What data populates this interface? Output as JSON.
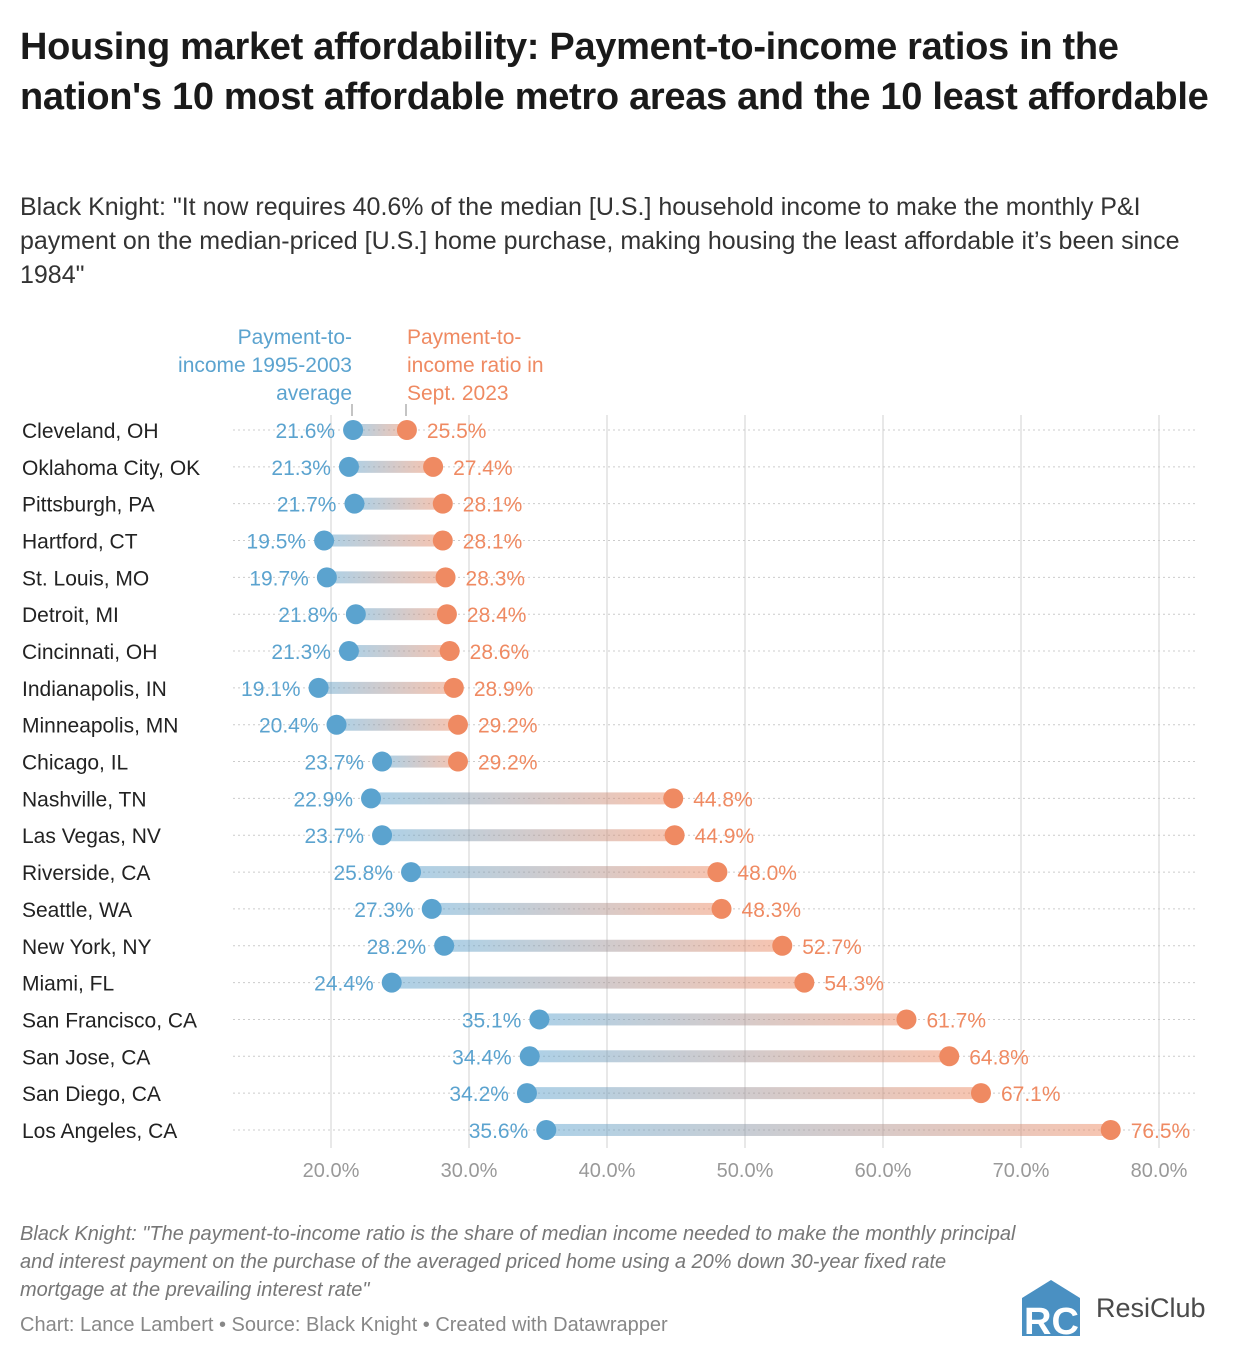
{
  "title": "Housing market affordability: Payment-to-income ratios in the nation's 10 most affordable metro areas and the 10 least affordable",
  "subtitle": "Black Knight: \"It now requires 40.6% of the median [U.S.] household income to make the monthly P&I payment on the median-priced [U.S.] home purchase, making housing the least affordable it’s been since 1984\"",
  "notes": "Black Knight: \"The payment-to-income ratio is the share of median income needed to make the monthly principal and interest payment on the purchase of the averaged priced home using a 20% down 30-year fixed rate mortgage at the prevailing interest rate\"",
  "byline": "Chart: Lance Lambert • Source: Black Knight • Created with Datawrapper",
  "logo": {
    "text": "ResiClub",
    "mark": "RC"
  },
  "colors": {
    "avg": "#5ba3cf",
    "sept2023": "#ef8a62"
  },
  "chart_data": {
    "type": "dot-range",
    "xlim": [
      15,
      80
    ],
    "xticks": [
      "20.0%",
      "30.0%",
      "40.0%",
      "50.0%",
      "60.0%",
      "70.0%",
      "80.0%"
    ],
    "xtick_values": [
      20,
      30,
      40,
      50,
      60,
      70,
      80
    ],
    "grid": true,
    "categories": [
      "Cleveland, OH",
      "Oklahoma City, OK",
      "Pittsburgh, PA",
      "Hartford, CT",
      "St. Louis, MO",
      "Detroit, MI",
      "Cincinnati, OH",
      "Indianapolis, IN",
      "Minneapolis, MN",
      "Chicago, IL",
      "Nashville, TN",
      "Las Vegas, NV",
      "Riverside, CA",
      "Seattle, WA",
      "New York, NY",
      "Miami, FL",
      "San Francisco, CA",
      "San Jose, CA",
      "San Diego, CA",
      "Los Angeles, CA"
    ],
    "series": [
      {
        "name": "Payment-to-income 1995-2003 average",
        "values": [
          21.6,
          21.3,
          21.7,
          19.5,
          19.7,
          21.8,
          21.3,
          19.1,
          20.4,
          23.7,
          22.9,
          23.7,
          25.8,
          27.3,
          28.2,
          24.4,
          35.1,
          34.4,
          34.2,
          35.6
        ]
      },
      {
        "name": "Payment-to-income ratio in Sept. 2023",
        "values": [
          25.5,
          27.4,
          28.1,
          28.1,
          28.3,
          28.4,
          28.6,
          28.9,
          29.2,
          29.2,
          44.8,
          44.9,
          48.0,
          48.3,
          52.7,
          54.3,
          61.7,
          64.8,
          67.1,
          76.5
        ]
      }
    ]
  }
}
